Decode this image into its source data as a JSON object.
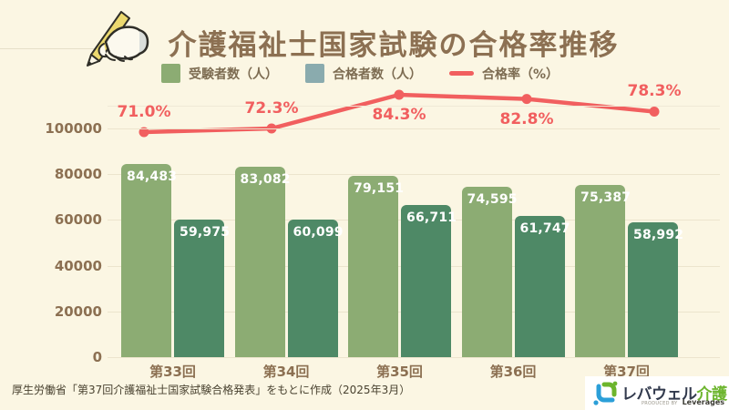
{
  "colors": {
    "background": "#fbf6e3",
    "accent_red": "#f15f5f",
    "bar_examinees_green": "#8cac73",
    "bar_passers_green": "#4e8966",
    "legend_passers_swatch": "#8aabae",
    "text_brown": "#8c7052",
    "logo_green": "#6cb52d",
    "logo_blue": "#2b9fd8",
    "logo_navy": "#323a4d"
  },
  "header": {
    "title": "介護福祉士国家試験の合格率推移"
  },
  "legend": {
    "items": [
      {
        "label": "受験者数（人）",
        "swatch": "square",
        "color": "#8cac73"
      },
      {
        "label": "合格者数（人）",
        "swatch": "square",
        "color": "#8aabae"
      },
      {
        "label": "合格率（%）",
        "swatch": "line",
        "color": "#f15f5f"
      }
    ]
  },
  "chart_data": {
    "type": "bar+line",
    "title": "介護福祉士国家試験の合格率推移",
    "categories": [
      "第33回",
      "第34回",
      "第35回",
      "第36回",
      "第37回"
    ],
    "series": [
      {
        "name": "受験者数（人）",
        "type": "bar",
        "color": "#8cac73",
        "values": [
          84483,
          83082,
          79151,
          74595,
          75387
        ],
        "value_labels": [
          "84,483",
          "83,082",
          "79,151",
          "74,595",
          "75,387"
        ]
      },
      {
        "name": "合格者数（人）",
        "type": "bar",
        "color": "#4e8966",
        "values": [
          59975,
          60099,
          66711,
          61747,
          58992
        ],
        "value_labels": [
          "59,975",
          "60,099",
          "66,711",
          "61,747",
          "58,992"
        ]
      },
      {
        "name": "合格率（%）",
        "type": "line",
        "color": "#f15f5f",
        "values": [
          71.0,
          72.3,
          84.3,
          82.8,
          78.3
        ],
        "value_labels": [
          "71.0%",
          "72.3%",
          "84.3%",
          "82.8%",
          "78.3%"
        ],
        "label_placement": [
          "above",
          "above",
          "below",
          "below",
          "above"
        ]
      }
    ],
    "y_axis": {
      "min": 0,
      "max": 100000,
      "tick_interval": 20000,
      "tick_labels": [
        "0",
        "20000",
        "40000",
        "60000",
        "80000",
        "100000"
      ]
    },
    "grid": true,
    "legend_position": "top"
  },
  "footer": {
    "source_note": "厚生労働省「第37回介護福祉士国家試験合格発表」をもとに作成（2025年3月）"
  },
  "logo": {
    "brand_main": "レバウェル",
    "brand_sub": "介護",
    "produced_by_label": "PRODUCED BY",
    "company_name": "Leverages"
  }
}
